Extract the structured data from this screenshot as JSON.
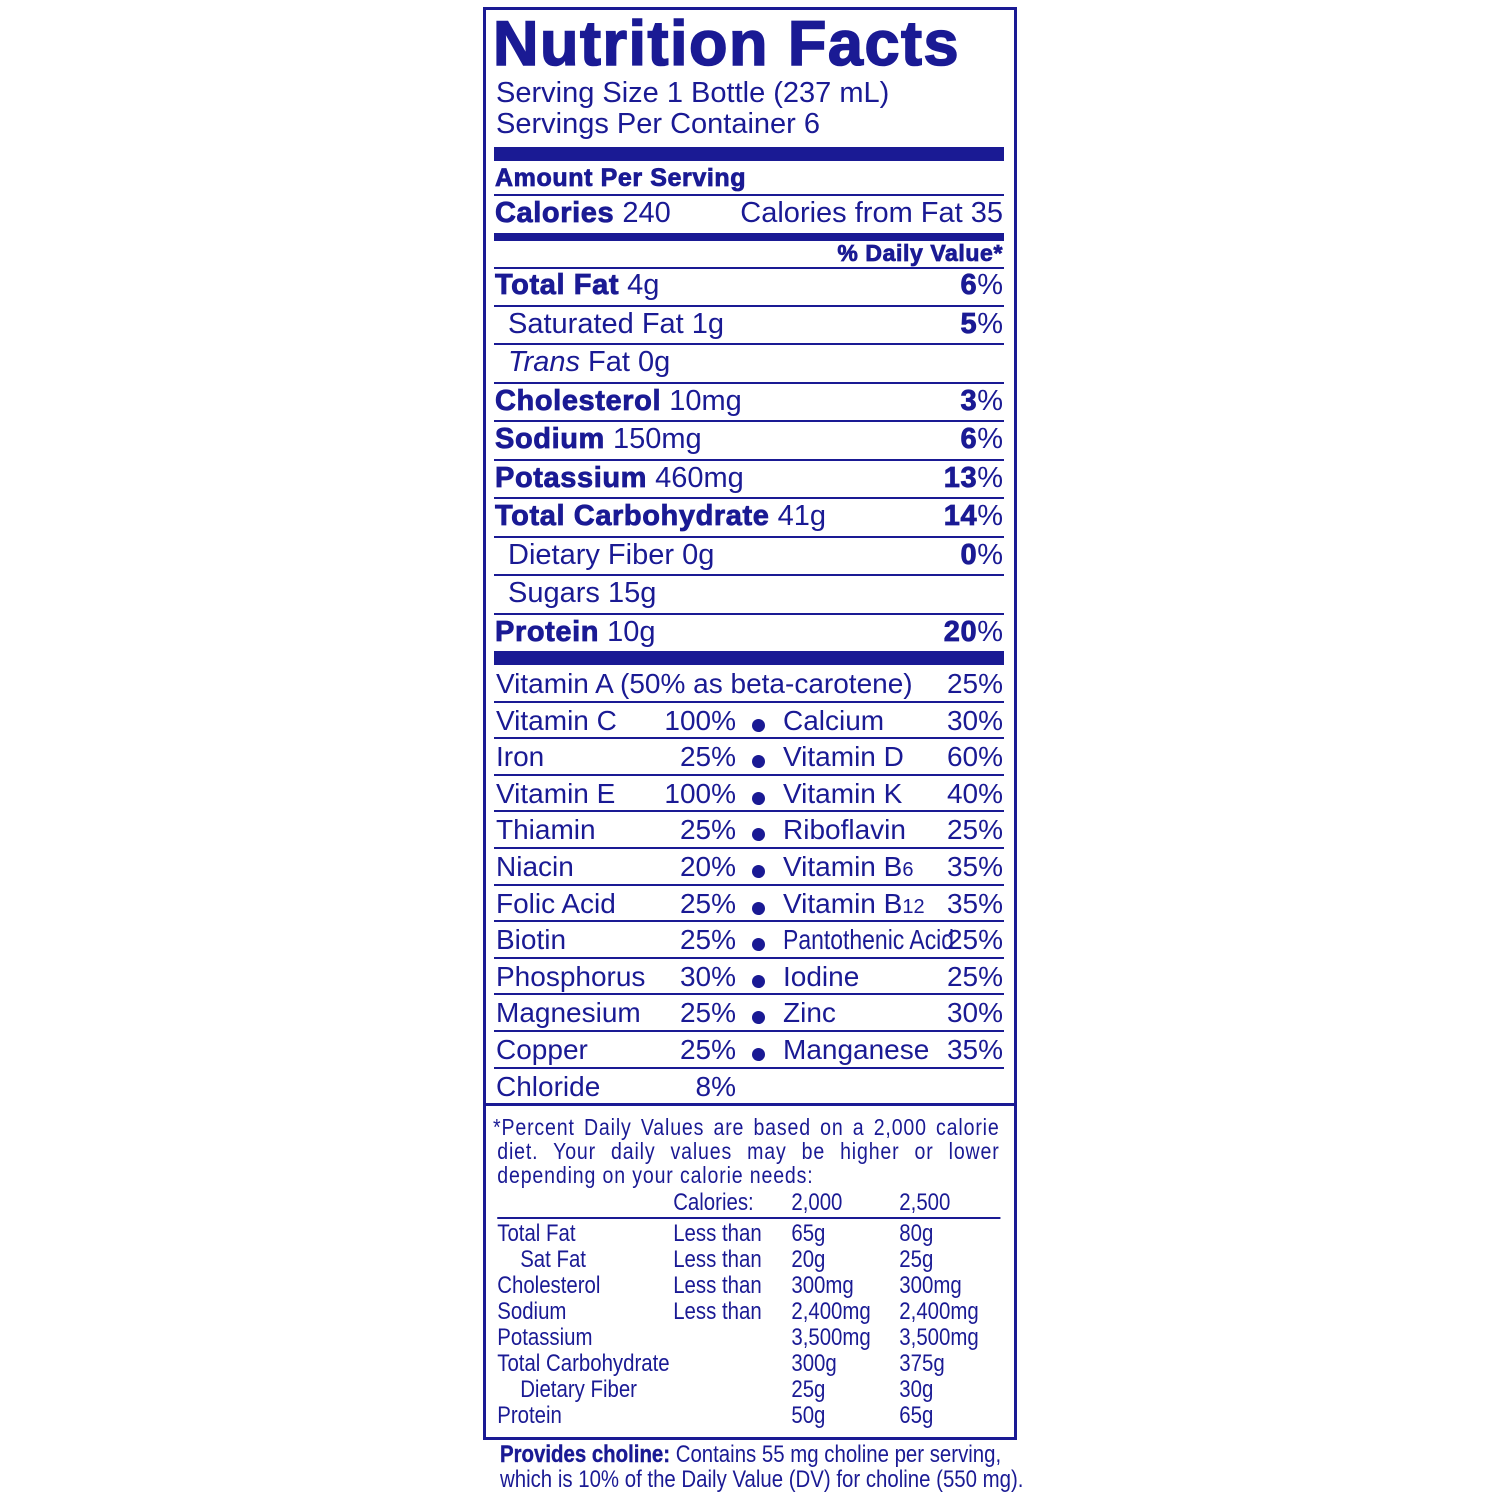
{
  "label": {
    "title": "Nutrition Facts",
    "serving_size": "Serving Size 1 Bottle (237 mL)",
    "servings_per_container": "Servings Per Container 6",
    "amount_per_serving": "Amount Per Serving",
    "calories_label": "Calories",
    "calories_value": "240",
    "calories_from_fat": "Calories from Fat 35",
    "daily_value_header": "% Daily Value*",
    "color": "#1a1a94"
  },
  "nutrients": [
    {
      "name": "Total Fat",
      "amount": "4g",
      "pct_num": "6",
      "pct_sign": "%",
      "bold": true
    },
    {
      "name": "Saturated Fat",
      "amount": "1g",
      "pct_num": "5",
      "pct_sign": "%",
      "bold": false
    },
    {
      "name": "Trans",
      "amount": "Fat 0g",
      "pct_num": "",
      "pct_sign": "",
      "bold": false
    },
    {
      "name": "Cholesterol",
      "amount": "10mg",
      "pct_num": "3",
      "pct_sign": "%",
      "bold": true
    },
    {
      "name": "Sodium",
      "amount": "150mg",
      "pct_num": "6",
      "pct_sign": "%",
      "bold": true
    },
    {
      "name": "Potassium",
      "amount": "460mg",
      "pct_num": "13",
      "pct_sign": "%",
      "bold": true
    },
    {
      "name": "Total Carbohydrate",
      "amount": "41g",
      "pct_num": "14",
      "pct_sign": "%",
      "bold": true
    },
    {
      "name": "Dietary Fiber",
      "amount": "0g",
      "pct_num": "0",
      "pct_sign": "%",
      "bold": false
    },
    {
      "name": "Sugars",
      "amount": "15g",
      "pct_num": "",
      "pct_sign": "",
      "bold": false
    },
    {
      "name": "Protein",
      "amount": "10g",
      "pct_num": "20",
      "pct_sign": "%",
      "bold": true
    }
  ],
  "vitamin_a": {
    "name": "Vitamin A (50% as beta-carotene)",
    "pct": "25%"
  },
  "vitamins": [
    {
      "left_name": "Vitamin C",
      "left_pct": "100%",
      "right_name": "Calcium",
      "right_sub": "",
      "right_pct": "30%"
    },
    {
      "left_name": "Iron",
      "left_pct": "25%",
      "right_name": "Vitamin D",
      "right_sub": "",
      "right_pct": "60%"
    },
    {
      "left_name": "Vitamin E",
      "left_pct": "100%",
      "right_name": "Vitamin K",
      "right_sub": "",
      "right_pct": "40%"
    },
    {
      "left_name": "Thiamin",
      "left_pct": "25%",
      "right_name": "Riboflavin",
      "right_sub": "",
      "right_pct": "25%"
    },
    {
      "left_name": "Niacin",
      "left_pct": "20%",
      "right_name": "Vitamin B",
      "right_sub": "6",
      "right_pct": "35%"
    },
    {
      "left_name": "Folic Acid",
      "left_pct": "25%",
      "right_name": "Vitamin B",
      "right_sub": "12",
      "right_pct": "35%"
    },
    {
      "left_name": "Biotin",
      "left_pct": "25%",
      "right_name": "Pantothenic Acid",
      "right_sub": "",
      "right_pct": "25%"
    },
    {
      "left_name": "Phosphorus",
      "left_pct": "30%",
      "right_name": "Iodine",
      "right_sub": "",
      "right_pct": "25%"
    },
    {
      "left_name": "Magnesium",
      "left_pct": "25%",
      "right_name": "Zinc",
      "right_sub": "",
      "right_pct": "30%"
    },
    {
      "left_name": "Copper",
      "left_pct": "25%",
      "right_name": "Manganese",
      "right_sub": "",
      "right_pct": "35%"
    }
  ],
  "chloride": {
    "name": "Chloride",
    "pct": "8%"
  },
  "footnote": {
    "lines": [
      "*Percent Daily Values are based on a 2,000 calorie",
      "diet. Your daily values may be higher or lower",
      "depending on your calorie needs:"
    ],
    "header": {
      "label": "Calories:",
      "col1": "2,000",
      "col2": "2,500"
    },
    "rows": [
      {
        "name": "Total Fat",
        "qual": "Less than",
        "v1": "65g",
        "v2": "80g"
      },
      {
        "name": "Sat Fat",
        "qual": "Less than",
        "v1": "20g",
        "v2": "25g"
      },
      {
        "name": "Cholesterol",
        "qual": "Less than",
        "v1": "300mg",
        "v2": "300mg"
      },
      {
        "name": "Sodium",
        "qual": "Less than",
        "v1": "2,400mg",
        "v2": "2,400mg"
      },
      {
        "name": "Potassium",
        "qual": "",
        "v1": "3,500mg",
        "v2": "3,500mg"
      },
      {
        "name": "Total Carbohydrate",
        "qual": "",
        "v1": "300g",
        "v2": "375g"
      },
      {
        "name": "Dietary Fiber",
        "qual": "",
        "v1": "25g",
        "v2": "30g"
      },
      {
        "name": "Protein",
        "qual": "",
        "v1": "50g",
        "v2": "65g"
      }
    ]
  },
  "choline": {
    "bold": "Provides choline:",
    "line1": " Contains 55 mg choline per serving,",
    "line2": "which is 10% of the Daily Value (DV) for choline (550 mg)."
  }
}
